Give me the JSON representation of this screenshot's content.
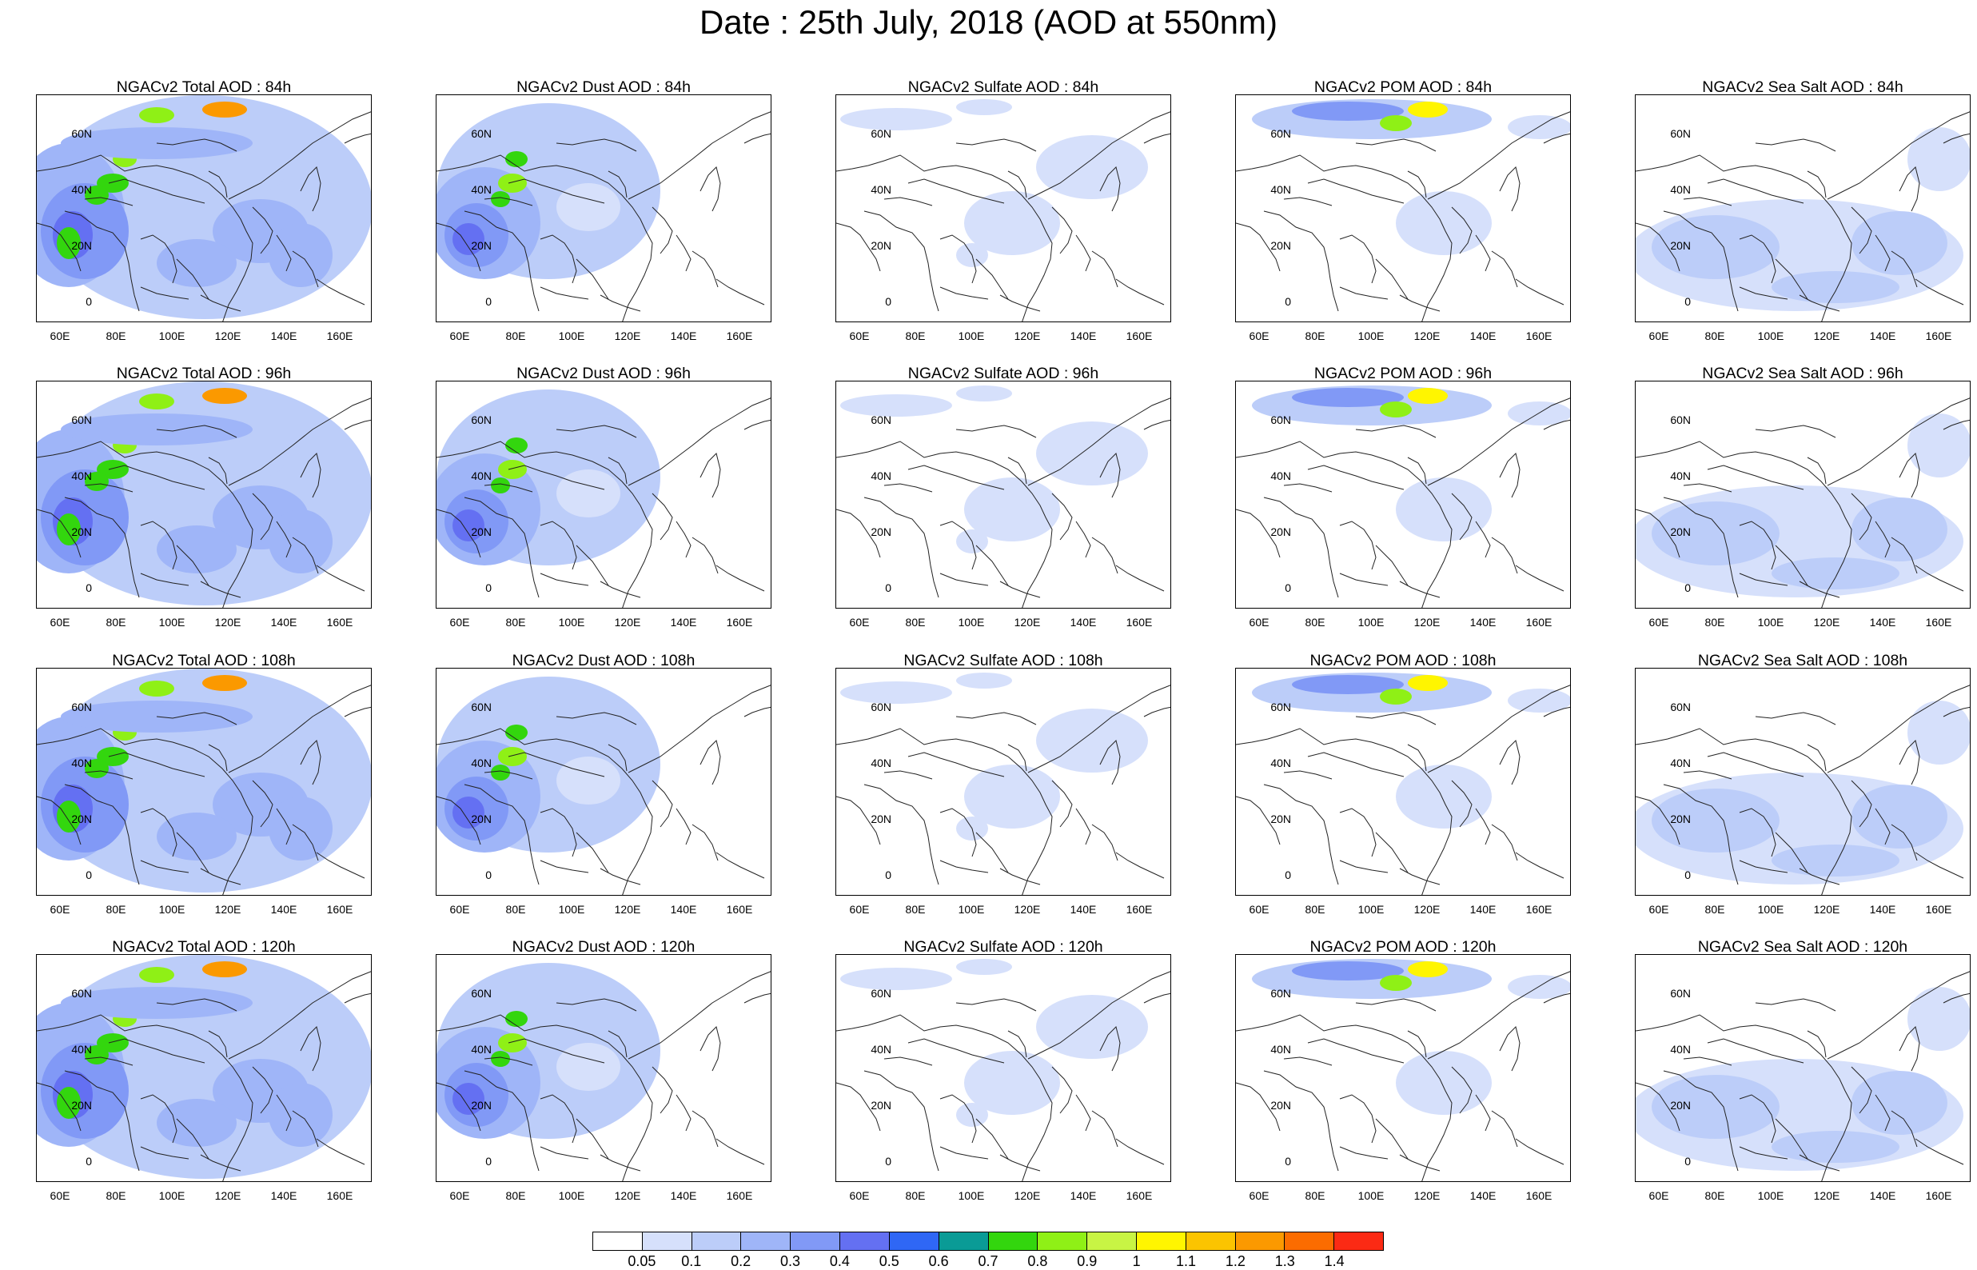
{
  "title": "Date : 25th July, 2018 (AOD at 550nm)",
  "panels": [
    [
      "NGACv2 Total AOD : 84h",
      "NGACv2 Dust AOD : 84h",
      "NGACv2 Sulfate AOD : 84h",
      "NGACv2 POM AOD : 84h",
      "NGACv2 Sea Salt AOD : 84h"
    ],
    [
      "NGACv2 Total AOD : 96h",
      "NGACv2 Dust AOD : 96h",
      "NGACv2 Sulfate AOD : 96h",
      "NGACv2 POM AOD : 96h",
      "NGACv2 Sea Salt AOD : 96h"
    ],
    [
      "NGACv2 Total AOD : 108h",
      "NGACv2 Dust AOD : 108h",
      "NGACv2 Sulfate AOD : 108h",
      "NGACv2 POM AOD : 108h",
      "NGACv2 Sea Salt AOD : 108h"
    ],
    [
      "NGACv2 Total AOD : 120h",
      "NGACv2 Dust AOD : 120h",
      "NGACv2 Sulfate AOD : 120h",
      "NGACv2 POM AOD : 120h",
      "NGACv2 Sea Salt  AOD : 120h"
    ]
  ],
  "lat_ticks": [
    "60N",
    "40N",
    "20N",
    "0"
  ],
  "lon_ticks": [
    "60E",
    "80E",
    "100E",
    "120E",
    "140E",
    "160E"
  ],
  "colorbar": {
    "colors": [
      "#ffffff",
      "#d6e0fb",
      "#bccdf9",
      "#9fb5f8",
      "#8199f6",
      "#6470f2",
      "#2f67f5",
      "#0a9b96",
      "#33d60e",
      "#8ff016",
      "#c8f444",
      "#fff500",
      "#fbc400",
      "#fb9900",
      "#fb6c00",
      "#fb2a14"
    ],
    "labels": [
      "0.05",
      "0.1",
      "0.2",
      "0.3",
      "0.4",
      "0.5",
      "0.6",
      "0.7",
      "0.8",
      "0.9",
      "1",
      "1.1",
      "1.2",
      "1.3",
      "1.4"
    ]
  }
}
